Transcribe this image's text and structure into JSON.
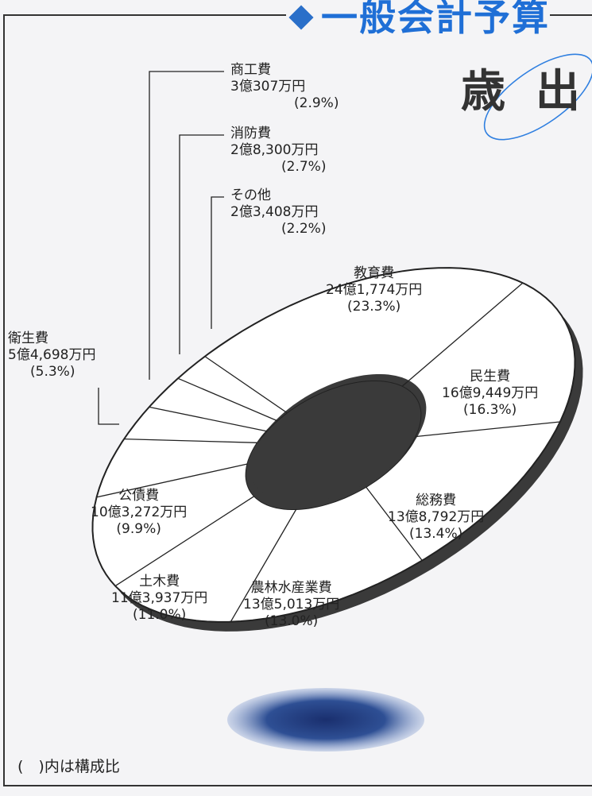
{
  "header": {
    "title": "一般会計予算",
    "section": "歳出"
  },
  "footnote": "(　)内は構成比",
  "chart_data": {
    "type": "pie",
    "title": "一般会計予算 歳出",
    "slices": [
      {
        "name": "教育費",
        "amount": "24億1,774万円",
        "percent_label": "(23.3%)",
        "value": 23.3
      },
      {
        "name": "民生費",
        "amount": "16億9,449万円",
        "percent_label": "(16.3%)",
        "value": 16.3
      },
      {
        "name": "総務費",
        "amount": "13億8,792万円",
        "percent_label": "(13.4%)",
        "value": 13.4
      },
      {
        "name": "農林水産業費",
        "amount": "13億5,013万円",
        "percent_label": "(13.0%)",
        "value": 13.0
      },
      {
        "name": "土木費",
        "amount": "11億3,937万円",
        "percent_label": "(11.0%)",
        "value": 11.0
      },
      {
        "name": "公債費",
        "amount": "10億3,272万円",
        "percent_label": "(9.9%)",
        "value": 9.9
      },
      {
        "name": "衛生費",
        "amount": "5億4,698万円",
        "percent_label": "(5.3%)",
        "value": 5.3
      },
      {
        "name": "商工費",
        "amount": "3億307万円",
        "percent_label": "(2.9%)",
        "value": 2.9
      },
      {
        "name": "消防費",
        "amount": "2億8,300万円",
        "percent_label": "(2.7%)",
        "value": 2.7
      },
      {
        "name": "その他",
        "amount": "2億3,408万円",
        "percent_label": "(2.2%)",
        "value": 2.2
      }
    ]
  }
}
